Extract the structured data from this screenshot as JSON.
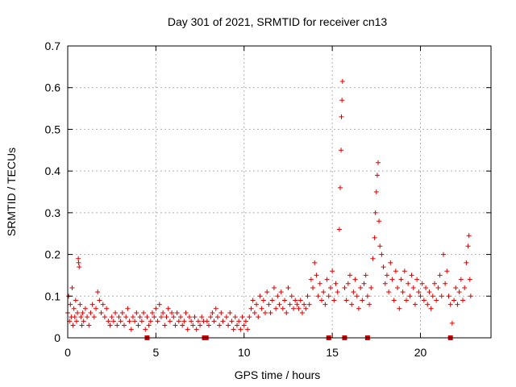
{
  "chart_data": {
    "type": "scatter",
    "title": "Day 301 of 2021, SRMTID for receiver cn13",
    "xlabel": "GPS time / hours",
    "ylabel": "SRMTID / TECUs",
    "xlim": [
      0,
      24
    ],
    "ylim": [
      0,
      0.7
    ],
    "x_ticks": [
      0,
      5,
      10,
      15,
      20
    ],
    "x_tick_labels": [
      "0",
      "5",
      "10",
      "15",
      "20"
    ],
    "y_ticks": [
      0,
      0.1,
      0.2,
      0.3,
      0.4,
      0.5,
      0.6,
      0.7
    ],
    "y_tick_labels": [
      "0",
      "0.1",
      "0.2",
      "0.3",
      "0.4",
      "0.5",
      "0.6",
      "0.7"
    ],
    "grid": true,
    "marker": "+",
    "series_color": "#dd0000",
    "series": [
      {
        "name": "SRMTID",
        "points": [
          [
            0.0,
            0.06
          ],
          [
            0.05,
            0.1
          ],
          [
            0.1,
            0.04
          ],
          [
            0.15,
            0.08
          ],
          [
            0.2,
            0.05
          ],
          [
            0.25,
            0.12
          ],
          [
            0.3,
            0.03
          ],
          [
            0.35,
            0.07
          ],
          [
            0.4,
            0.05
          ],
          [
            0.45,
            0.09
          ],
          [
            0.5,
            0.04
          ],
          [
            0.55,
            0.06
          ],
          [
            0.6,
            0.19
          ],
          [
            0.62,
            0.18
          ],
          [
            0.65,
            0.17
          ],
          [
            0.7,
            0.08
          ],
          [
            0.75,
            0.05
          ],
          [
            0.8,
            0.03
          ],
          [
            0.85,
            0.06
          ],
          [
            0.9,
            0.04
          ],
          [
            1.0,
            0.07
          ],
          [
            1.1,
            0.05
          ],
          [
            1.2,
            0.03
          ],
          [
            1.3,
            0.06
          ],
          [
            1.4,
            0.08
          ],
          [
            1.5,
            0.05
          ],
          [
            1.6,
            0.07
          ],
          [
            1.7,
            0.11
          ],
          [
            1.8,
            0.09
          ],
          [
            1.9,
            0.06
          ],
          [
            2.0,
            0.08
          ],
          [
            2.1,
            0.05
          ],
          [
            2.2,
            0.07
          ],
          [
            2.3,
            0.04
          ],
          [
            2.4,
            0.03
          ],
          [
            2.5,
            0.05
          ],
          [
            2.6,
            0.04
          ],
          [
            2.7,
            0.06
          ],
          [
            2.8,
            0.03
          ],
          [
            2.9,
            0.05
          ],
          [
            3.0,
            0.04
          ],
          [
            3.1,
            0.06
          ],
          [
            3.2,
            0.03
          ],
          [
            3.3,
            0.05
          ],
          [
            3.4,
            0.07
          ],
          [
            3.5,
            0.04
          ],
          [
            3.6,
            0.02
          ],
          [
            3.7,
            0.05
          ],
          [
            3.8,
            0.04
          ],
          [
            3.9,
            0.06
          ],
          [
            4.0,
            0.03
          ],
          [
            4.1,
            0.05
          ],
          [
            4.2,
            0.04
          ],
          [
            4.3,
            0.06
          ],
          [
            4.4,
            0.02
          ],
          [
            4.5,
            0.05
          ],
          [
            4.6,
            0.03
          ],
          [
            4.7,
            0.04
          ],
          [
            4.8,
            0.06
          ],
          [
            4.9,
            0.05
          ],
          [
            5.0,
            0.07
          ],
          [
            5.1,
            0.04
          ],
          [
            5.2,
            0.08
          ],
          [
            5.3,
            0.05
          ],
          [
            5.4,
            0.06
          ],
          [
            5.5,
            0.03
          ],
          [
            5.6,
            0.05
          ],
          [
            5.7,
            0.07
          ],
          [
            5.8,
            0.04
          ],
          [
            5.9,
            0.06
          ],
          [
            6.0,
            0.05
          ],
          [
            6.1,
            0.03
          ],
          [
            6.2,
            0.06
          ],
          [
            6.3,
            0.04
          ],
          [
            6.4,
            0.05
          ],
          [
            6.5,
            0.03
          ],
          [
            6.6,
            0.04
          ],
          [
            6.7,
            0.06
          ],
          [
            6.8,
            0.02
          ],
          [
            6.9,
            0.05
          ],
          [
            7.0,
            0.04
          ],
          [
            7.1,
            0.03
          ],
          [
            7.2,
            0.05
          ],
          [
            7.3,
            0.02
          ],
          [
            7.4,
            0.04
          ],
          [
            7.5,
            0.03
          ],
          [
            7.6,
            0.05
          ],
          [
            7.7,
            0.04
          ],
          [
            7.9,
            0.04
          ],
          [
            8.0,
            0.03
          ],
          [
            8.1,
            0.05
          ],
          [
            8.2,
            0.06
          ],
          [
            8.3,
            0.04
          ],
          [
            8.4,
            0.07
          ],
          [
            8.5,
            0.05
          ],
          [
            8.6,
            0.03
          ],
          [
            8.7,
            0.06
          ],
          [
            8.8,
            0.04
          ],
          [
            9.0,
            0.05
          ],
          [
            9.1,
            0.03
          ],
          [
            9.2,
            0.06
          ],
          [
            9.3,
            0.04
          ],
          [
            9.4,
            0.02
          ],
          [
            9.5,
            0.05
          ],
          [
            9.6,
            0.03
          ],
          [
            9.7,
            0.04
          ],
          [
            9.8,
            0.02
          ],
          [
            9.9,
            0.05
          ],
          [
            10.0,
            0.03
          ],
          [
            10.1,
            0.04
          ],
          [
            10.2,
            0.02
          ],
          [
            10.3,
            0.05
          ],
          [
            10.4,
            0.07
          ],
          [
            10.5,
            0.09
          ],
          [
            10.6,
            0.06
          ],
          [
            10.7,
            0.08
          ],
          [
            10.8,
            0.05
          ],
          [
            10.9,
            0.1
          ],
          [
            11.0,
            0.07
          ],
          [
            11.1,
            0.09
          ],
          [
            11.2,
            0.06
          ],
          [
            11.3,
            0.11
          ],
          [
            11.4,
            0.08
          ],
          [
            11.5,
            0.06
          ],
          [
            11.6,
            0.09
          ],
          [
            11.7,
            0.12
          ],
          [
            11.8,
            0.07
          ],
          [
            11.9,
            0.1
          ],
          [
            12.0,
            0.08
          ],
          [
            12.1,
            0.11
          ],
          [
            12.2,
            0.07
          ],
          [
            12.3,
            0.09
          ],
          [
            12.4,
            0.06
          ],
          [
            12.5,
            0.12
          ],
          [
            12.6,
            0.08
          ],
          [
            12.7,
            0.1
          ],
          [
            12.8,
            0.07
          ],
          [
            12.9,
            0.09
          ],
          [
            13.0,
            0.08
          ],
          [
            13.1,
            0.07
          ],
          [
            13.2,
            0.09
          ],
          [
            13.3,
            0.06
          ],
          [
            13.4,
            0.08
          ],
          [
            13.5,
            0.07
          ],
          [
            13.6,
            0.1
          ],
          [
            13.7,
            0.08
          ],
          [
            13.8,
            0.14
          ],
          [
            13.9,
            0.12
          ],
          [
            14.0,
            0.18
          ],
          [
            14.1,
            0.15
          ],
          [
            14.2,
            0.1
          ],
          [
            14.3,
            0.13
          ],
          [
            14.4,
            0.09
          ],
          [
            14.5,
            0.11
          ],
          [
            14.6,
            0.08
          ],
          [
            14.7,
            0.14
          ],
          [
            14.8,
            0.1
          ],
          [
            14.9,
            0.12
          ],
          [
            15.0,
            0.16
          ],
          [
            15.1,
            0.09
          ],
          [
            15.2,
            0.13
          ],
          [
            15.3,
            0.11
          ],
          [
            15.4,
            0.26
          ],
          [
            15.45,
            0.36
          ],
          [
            15.5,
            0.45
          ],
          [
            15.52,
            0.53
          ],
          [
            15.55,
            0.57
          ],
          [
            15.58,
            0.615
          ],
          [
            15.7,
            0.12
          ],
          [
            15.8,
            0.09
          ],
          [
            15.9,
            0.13
          ],
          [
            16.0,
            0.15
          ],
          [
            16.1,
            0.08
          ],
          [
            16.2,
            0.11
          ],
          [
            16.3,
            0.14
          ],
          [
            16.4,
            0.1
          ],
          [
            16.5,
            0.07
          ],
          [
            16.6,
            0.12
          ],
          [
            16.7,
            0.09
          ],
          [
            16.8,
            0.13
          ],
          [
            16.9,
            0.15
          ],
          [
            17.0,
            0.1
          ],
          [
            17.1,
            0.08
          ],
          [
            17.2,
            0.12
          ],
          [
            17.3,
            0.19
          ],
          [
            17.4,
            0.24
          ],
          [
            17.45,
            0.3
          ],
          [
            17.5,
            0.35
          ],
          [
            17.55,
            0.39
          ],
          [
            17.6,
            0.42
          ],
          [
            17.65,
            0.28
          ],
          [
            17.7,
            0.22
          ],
          [
            17.8,
            0.2
          ],
          [
            17.9,
            0.17
          ],
          [
            18.0,
            0.13
          ],
          [
            18.1,
            0.15
          ],
          [
            18.2,
            0.11
          ],
          [
            18.3,
            0.18
          ],
          [
            18.4,
            0.14
          ],
          [
            18.5,
            0.09
          ],
          [
            18.6,
            0.16
          ],
          [
            18.7,
            0.12
          ],
          [
            18.8,
            0.07
          ],
          [
            18.9,
            0.14
          ],
          [
            19.0,
            0.11
          ],
          [
            19.1,
            0.16
          ],
          [
            19.2,
            0.09
          ],
          [
            19.3,
            0.13
          ],
          [
            19.4,
            0.1
          ],
          [
            19.5,
            0.15
          ],
          [
            19.6,
            0.12
          ],
          [
            19.7,
            0.08
          ],
          [
            19.8,
            0.14
          ],
          [
            19.9,
            0.11
          ],
          [
            20.0,
            0.1
          ],
          [
            20.1,
            0.13
          ],
          [
            20.2,
            0.09
          ],
          [
            20.3,
            0.12
          ],
          [
            20.4,
            0.08
          ],
          [
            20.5,
            0.11
          ],
          [
            20.6,
            0.07
          ],
          [
            20.7,
            0.1
          ],
          [
            20.8,
            0.13
          ],
          [
            20.9,
            0.09
          ],
          [
            21.0,
            0.12
          ],
          [
            21.1,
            0.15
          ],
          [
            21.2,
            0.1
          ],
          [
            21.3,
            0.2
          ],
          [
            21.4,
            0.13
          ],
          [
            21.5,
            0.16
          ],
          [
            21.6,
            0.1
          ],
          [
            21.7,
            0.08
          ],
          [
            21.8,
            0.035
          ],
          [
            21.9,
            0.09
          ],
          [
            22.0,
            0.12
          ],
          [
            22.1,
            0.08
          ],
          [
            22.2,
            0.11
          ],
          [
            22.3,
            0.14
          ],
          [
            22.4,
            0.09
          ],
          [
            22.5,
            0.12
          ],
          [
            22.6,
            0.18
          ],
          [
            22.7,
            0.22
          ],
          [
            22.75,
            0.245
          ],
          [
            22.8,
            0.14
          ],
          [
            22.85,
            0.1
          ]
        ]
      }
    ],
    "gap_markers_x": [
      4.5,
      7.75,
      7.85,
      14.8,
      15.7,
      17.0,
      21.7
    ]
  }
}
